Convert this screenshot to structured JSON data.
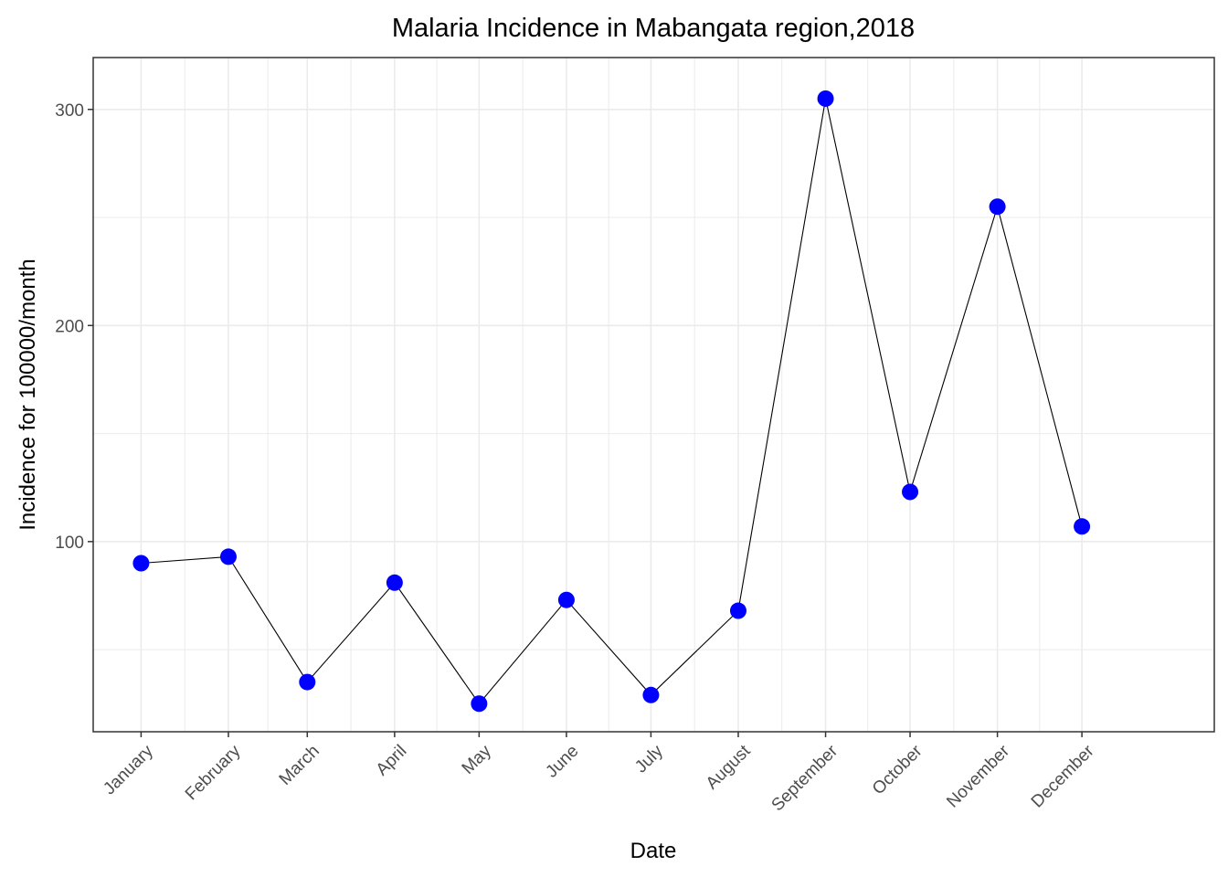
{
  "chart_data": {
    "type": "line",
    "title": "Malaria Incidence in Mabangata region,2018",
    "xlabel": "Date",
    "ylabel": "Incidence for 100000/month",
    "categories": [
      "January",
      "February",
      "March",
      "April",
      "May",
      "June",
      "July",
      "August",
      "September",
      "October",
      "November",
      "December"
    ],
    "x_dates": [
      "2018-01-01",
      "2018-02-01",
      "2018-03-01",
      "2018-04-01",
      "2018-05-01",
      "2018-06-01",
      "2018-07-01",
      "2018-08-01",
      "2018-09-01",
      "2018-10-01",
      "2018-11-01",
      "2018-12-01"
    ],
    "series": [
      {
        "values": [
          90,
          93,
          35,
          81,
          25,
          73,
          29,
          68,
          305,
          123,
          255,
          107
        ]
      }
    ],
    "ylim": [
      12,
      324
    ],
    "yticks": [
      "100",
      "200",
      "300"
    ],
    "grid": true,
    "legend": "none",
    "colors": {
      "point": "#0000ff",
      "line": "#000000",
      "grid": "#ebebeb",
      "panel_border": "#333333",
      "tick_label": "#4d4d4d"
    }
  }
}
